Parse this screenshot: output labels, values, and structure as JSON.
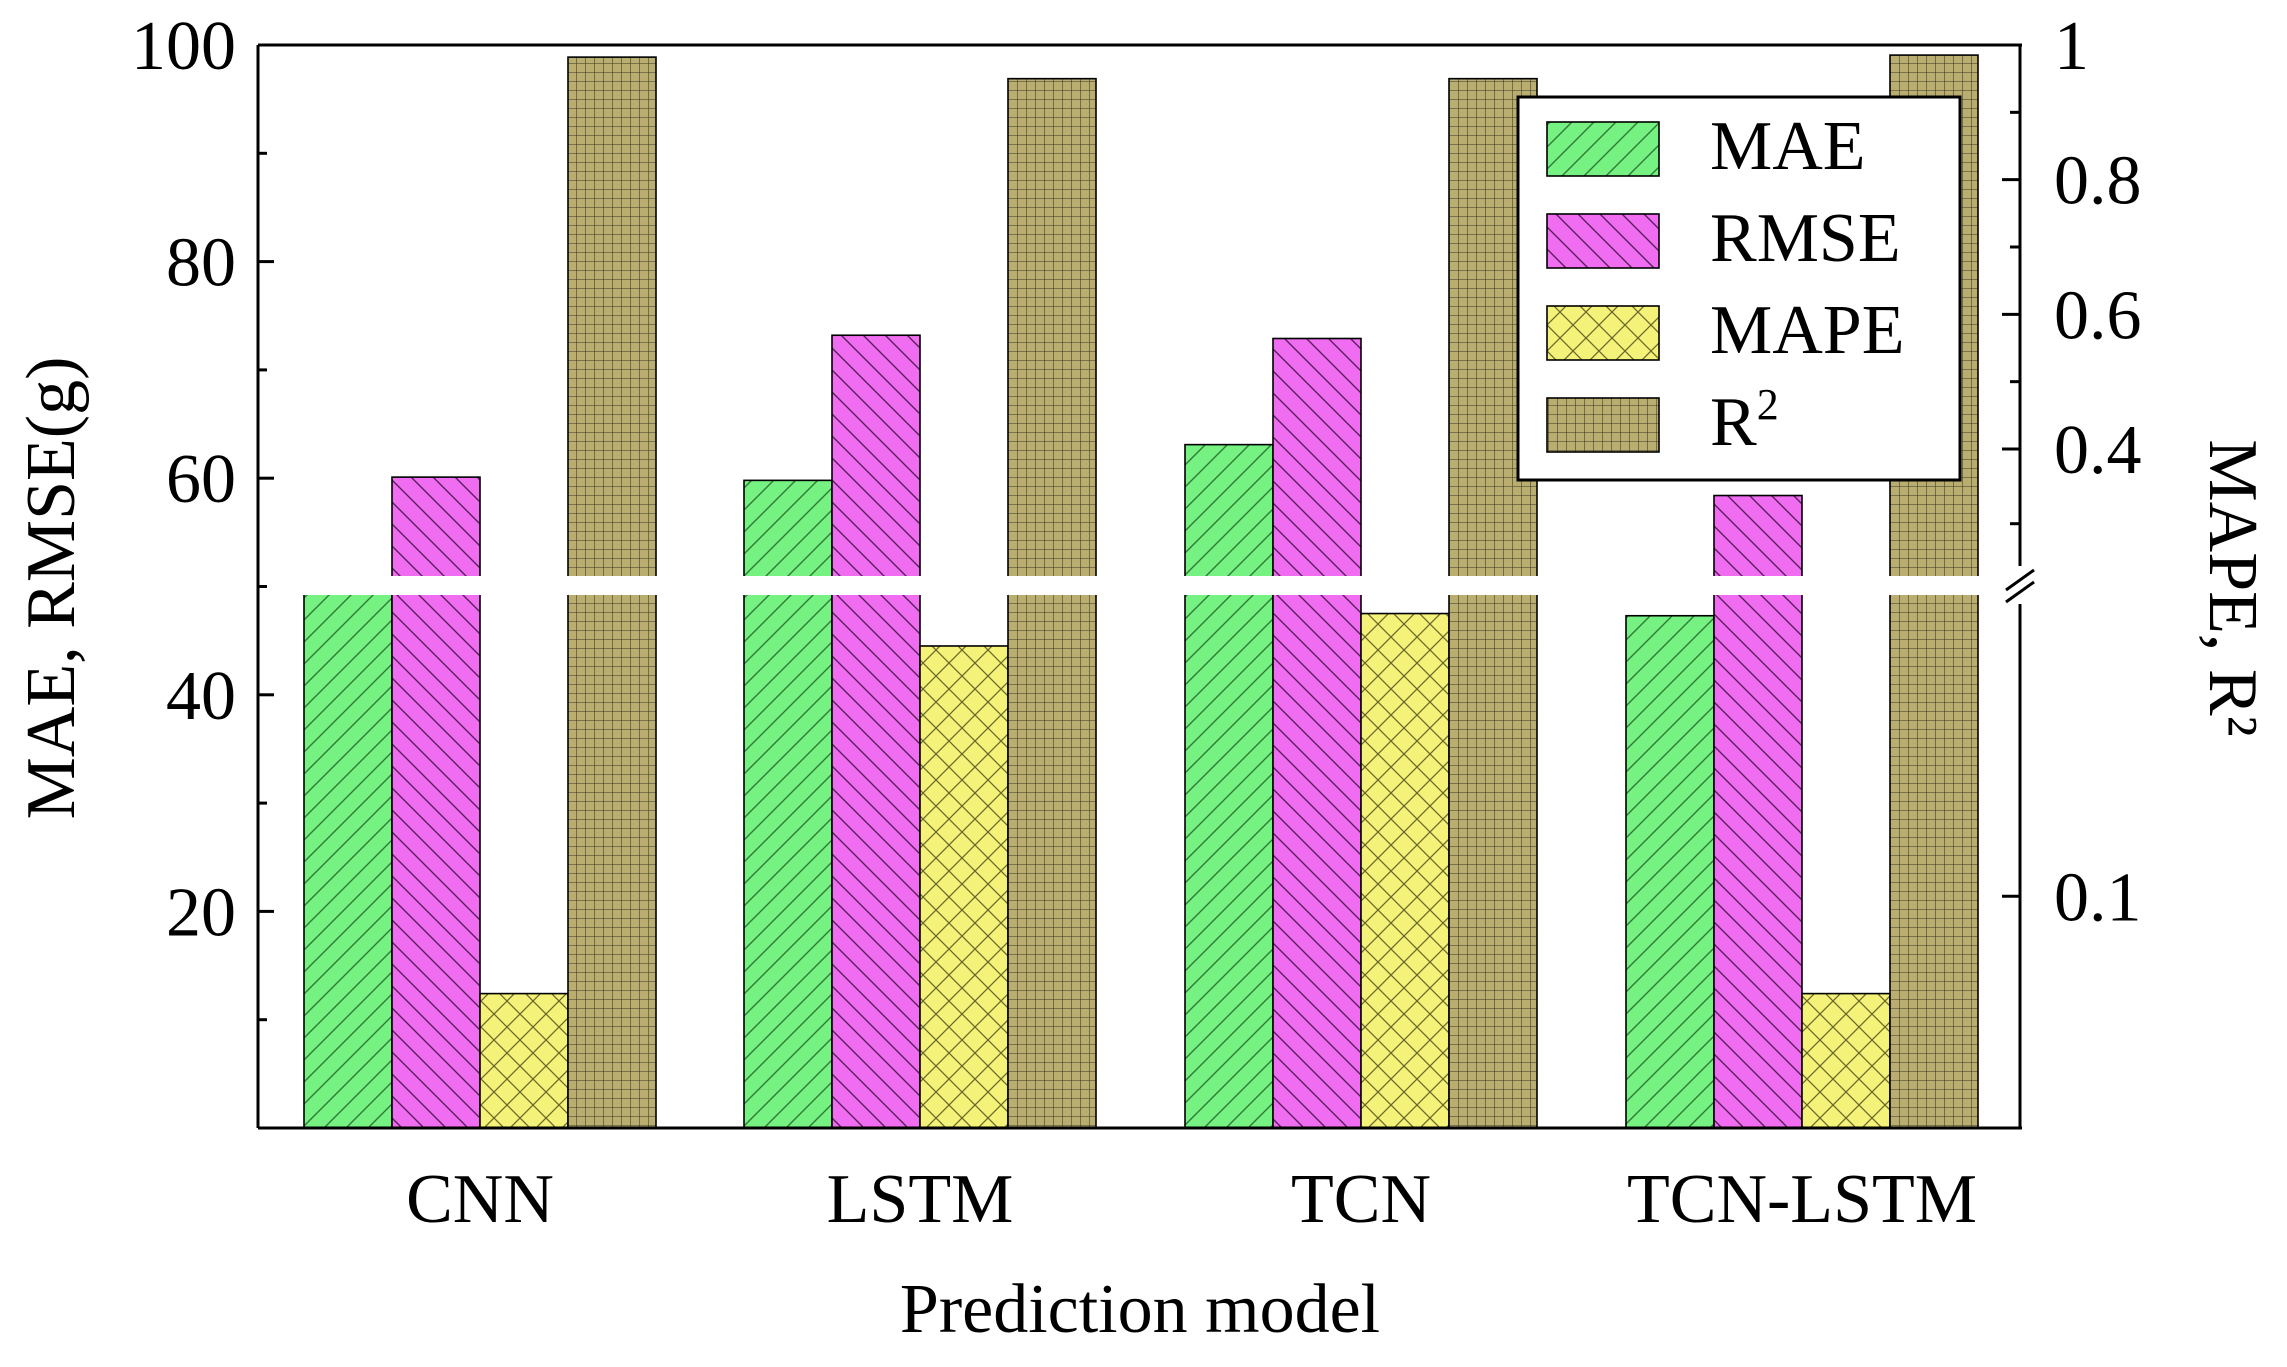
{
  "chart_data": {
    "type": "bar",
    "title": "",
    "xlabel": "Prediction model",
    "ylabel": "MAE, RMSE(g)",
    "ylabel_right": "MAPE, R²",
    "categories": [
      "CNN",
      "LSTM",
      "TCN",
      "TCN-LSTM"
    ],
    "ylim": [
      0,
      100
    ],
    "yticks": [
      20,
      40,
      60,
      80,
      100
    ],
    "yticks_right": [
      "0.1",
      "0.4",
      "0.6",
      "0.8",
      "1"
    ],
    "legend_position": "top-right",
    "series": [
      {
        "name": "MAE",
        "label_main": "MAE",
        "label_sup": "",
        "axis": "left",
        "values": [
          49.7,
          59.8,
          63.1,
          47.3
        ],
        "color": "#76f283",
        "pattern": "diagonal-up"
      },
      {
        "name": "RMSE",
        "label_main": "RMSE",
        "label_sup": "",
        "axis": "left",
        "values": [
          60.1,
          73.2,
          72.9,
          58.4
        ],
        "color": "#f06cf1",
        "pattern": "diagonal-down"
      },
      {
        "name": "MAPE",
        "label_main": "MAPE",
        "label_sup": "",
        "axis": "right",
        "values": [
          0.058,
          0.208,
          0.222,
          0.058
        ],
        "color": "#f5f27a",
        "pattern": "crosshatch"
      },
      {
        "name": "R2",
        "label_main": "R",
        "label_sup": "2",
        "axis": "right",
        "values": [
          0.982,
          0.95,
          0.95,
          0.985
        ],
        "color": "#b9ae6f",
        "pattern": "grid"
      }
    ],
    "axis_break": "//"
  }
}
